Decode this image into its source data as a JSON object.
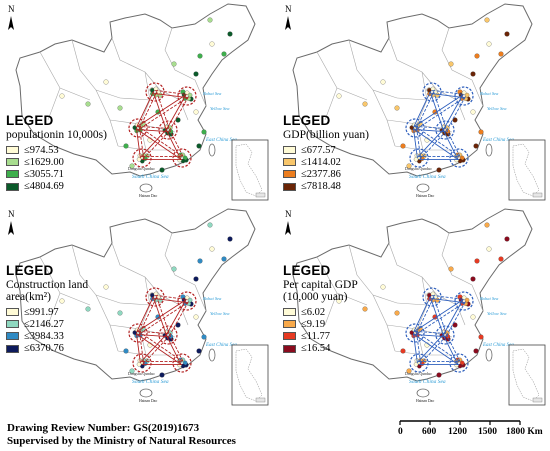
{
  "panels": [
    {
      "heading": "LEGED",
      "metric_title": "populationin 10,000s)",
      "items": [
        {
          "label": "≤974.53",
          "color": "#fffbd6"
        },
        {
          "label": "≤1629.00",
          "color": "#a8dd8f"
        },
        {
          "label": "≤3055.71",
          "color": "#3eae4c"
        },
        {
          "label": "≤4804.69",
          "color": "#0b5a2a"
        }
      ],
      "ring_color": "#b22222",
      "point_color": "#3a9a3a"
    },
    {
      "heading": "LEGED",
      "metric_title": "GDP(billion yuan)",
      "items": [
        {
          "label": "≤677.57",
          "color": "#fffbd6"
        },
        {
          "label": "≤1414.02",
          "color": "#f8c66b"
        },
        {
          "label": "≤2377.86",
          "color": "#ec7d1e"
        },
        {
          "label": "≤7818.48",
          "color": "#6a2406"
        }
      ],
      "ring_color": "#2e5fbd",
      "point_color": "#d06a1d"
    },
    {
      "heading": "LEGED",
      "metric_title": "Construction land area(km²)",
      "items": [
        {
          "label": "≤991.97",
          "color": "#fffbd6"
        },
        {
          "label": "≤2146.27",
          "color": "#8fd8c0"
        },
        {
          "label": "≤3984.33",
          "color": "#2f8ac3"
        },
        {
          "label": "≤6370.76",
          "color": "#0d1a5c"
        }
      ],
      "ring_color": "#b22222",
      "point_color": "#2f8ac3"
    },
    {
      "heading": "LEGED",
      "metric_title": "Per capital GDP (10,000 yuan)",
      "items": [
        {
          "label": "≤6.02",
          "color": "#fffbd6"
        },
        {
          "label": "≤9.19",
          "color": "#f8a94a"
        },
        {
          "label": "≤11.77",
          "color": "#e63a22"
        },
        {
          "label": "≤16.54",
          "color": "#8a0b1e"
        }
      ],
      "ring_color": "#2e5fbd",
      "point_color": "#b5152b"
    }
  ],
  "map_labels": {
    "north": "N",
    "bohai": "Bohai Sea",
    "yellow": "Yellow Sea",
    "east": "East China Sea",
    "south": "South China Sea",
    "dongsha": "Dongsha Qundao",
    "hainan": "Hainan Dao"
  },
  "footer": {
    "review": "Drawing Review Number: GS(2019)1673",
    "supervised": "Supervised by the Ministry of Natural Resources"
  },
  "scale": {
    "ticks": [
      "0",
      "600",
      "1200",
      "1500",
      "1800 Km"
    ]
  }
}
